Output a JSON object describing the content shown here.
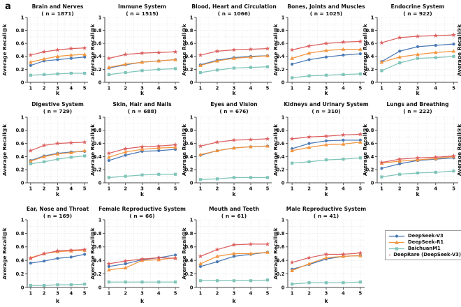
{
  "figure_label": "a",
  "axes": {
    "xlabel": "k",
    "ylabel": "Average Recall@k",
    "xticks": [
      1,
      2,
      3,
      4,
      5
    ],
    "yticks": [
      0,
      0.2,
      0.4,
      0.6,
      0.8,
      1
    ],
    "xlim": [
      0.75,
      5.25
    ],
    "ylim": [
      0,
      1
    ],
    "grid": true
  },
  "series_styles": [
    {
      "name": "DeepSeek-V3",
      "color": "#4a79b5",
      "marker": "circle"
    },
    {
      "name": "DeepSeek-R1",
      "color": "#f3953e",
      "marker": "triangle"
    },
    {
      "name": "BaichuanM1",
      "color": "#7fc4b9",
      "marker": "square"
    },
    {
      "name": "DeepRare (DeepSeek-V3)",
      "color": "#dc5f5f",
      "marker": "star"
    }
  ],
  "chart_data": {
    "type": "line",
    "x": [
      1,
      2,
      3,
      4,
      5
    ],
    "xlabel": "k",
    "ylabel": "Average Recall@k",
    "ylim": [
      0,
      1
    ],
    "legend_position": "grid-cell-row3-col5",
    "legend": [
      "DeepSeek-V3",
      "DeepSeek-R1",
      "BaichuanM1",
      "DeepRare (DeepSeek-V3)"
    ],
    "subplots": [
      {
        "title": "Brain and Nerves",
        "n": 1871,
        "series": [
          [
            0.26,
            0.33,
            0.35,
            0.37,
            0.39
          ],
          [
            0.31,
            0.36,
            0.4,
            0.42,
            0.43
          ],
          [
            0.11,
            0.12,
            0.13,
            0.14,
            0.14
          ],
          [
            0.42,
            0.47,
            0.5,
            0.52,
            0.53
          ]
        ]
      },
      {
        "title": "Immune System",
        "n": 1515,
        "series": [
          [
            0.22,
            0.27,
            0.31,
            0.33,
            0.35
          ],
          [
            0.23,
            0.28,
            0.31,
            0.33,
            0.35
          ],
          [
            0.12,
            0.15,
            0.18,
            0.2,
            0.21
          ],
          [
            0.37,
            0.43,
            0.45,
            0.46,
            0.47
          ]
        ]
      },
      {
        "title": "Blood, Heart and Circulation",
        "n": 1066,
        "series": [
          [
            0.27,
            0.34,
            0.38,
            0.4,
            0.41
          ],
          [
            0.26,
            0.33,
            0.37,
            0.39,
            0.41
          ],
          [
            0.15,
            0.19,
            0.22,
            0.23,
            0.24
          ],
          [
            0.42,
            0.48,
            0.5,
            0.51,
            0.52
          ]
        ]
      },
      {
        "title": "Bones, Joints and Muscles",
        "n": 1025,
        "series": [
          [
            0.28,
            0.35,
            0.39,
            0.42,
            0.44
          ],
          [
            0.37,
            0.45,
            0.49,
            0.51,
            0.51
          ],
          [
            0.07,
            0.1,
            0.11,
            0.12,
            0.13
          ],
          [
            0.5,
            0.56,
            0.6,
            0.62,
            0.63
          ]
        ]
      },
      {
        "title": "Endocrine System",
        "n": 922,
        "series": [
          [
            0.32,
            0.48,
            0.55,
            0.57,
            0.59
          ],
          [
            0.31,
            0.39,
            0.43,
            0.46,
            0.48
          ],
          [
            0.18,
            0.3,
            0.37,
            0.38,
            0.4
          ],
          [
            0.61,
            0.69,
            0.71,
            0.72,
            0.73
          ]
        ]
      },
      {
        "title": "Digestive System",
        "n": 729,
        "series": [
          [
            0.34,
            0.41,
            0.45,
            0.47,
            0.48
          ],
          [
            0.33,
            0.4,
            0.44,
            0.46,
            0.49
          ],
          [
            0.29,
            0.32,
            0.36,
            0.39,
            0.41
          ],
          [
            0.49,
            0.57,
            0.6,
            0.61,
            0.62
          ]
        ]
      },
      {
        "title": "Skin, Hair and Nails",
        "n": 688,
        "series": [
          [
            0.34,
            0.42,
            0.48,
            0.49,
            0.51
          ],
          [
            0.39,
            0.47,
            0.51,
            0.53,
            0.54
          ],
          [
            0.08,
            0.1,
            0.12,
            0.13,
            0.13
          ],
          [
            0.45,
            0.52,
            0.55,
            0.56,
            0.58
          ]
        ]
      },
      {
        "title": "Eyes and Vision",
        "n": 676,
        "series": [
          [
            0.42,
            0.49,
            0.53,
            0.55,
            0.56
          ],
          [
            0.43,
            0.49,
            0.53,
            0.55,
            0.56
          ],
          [
            0.05,
            0.06,
            0.08,
            0.08,
            0.08
          ],
          [
            0.56,
            0.62,
            0.65,
            0.66,
            0.67
          ]
        ]
      },
      {
        "title": "Kidneys and Urinary System",
        "n": 310,
        "series": [
          [
            0.52,
            0.6,
            0.64,
            0.65,
            0.65
          ],
          [
            0.49,
            0.54,
            0.58,
            0.59,
            0.62
          ],
          [
            0.3,
            0.32,
            0.35,
            0.36,
            0.38
          ],
          [
            0.67,
            0.7,
            0.71,
            0.73,
            0.74
          ]
        ]
      },
      {
        "title": "Lungs and Breathing",
        "n": 222,
        "series": [
          [
            0.22,
            0.29,
            0.34,
            0.36,
            0.38
          ],
          [
            0.3,
            0.33,
            0.35,
            0.37,
            0.4
          ],
          [
            0.09,
            0.13,
            0.15,
            0.16,
            0.18
          ],
          [
            0.31,
            0.36,
            0.38,
            0.39,
            0.41
          ]
        ]
      },
      {
        "title": "Ear, Nose and Throat",
        "n": 169,
        "series": [
          [
            0.36,
            0.39,
            0.43,
            0.45,
            0.49
          ],
          [
            0.44,
            0.5,
            0.53,
            0.54,
            0.55
          ],
          [
            0.03,
            0.03,
            0.04,
            0.04,
            0.05
          ],
          [
            0.43,
            0.5,
            0.54,
            0.55,
            0.56
          ]
        ]
      },
      {
        "title": "Female Reproductive System",
        "n": 66,
        "series": [
          [
            0.31,
            0.35,
            0.41,
            0.44,
            0.48
          ],
          [
            0.26,
            0.29,
            0.4,
            0.41,
            0.44
          ],
          [
            0.08,
            0.08,
            0.08,
            0.08,
            0.08
          ],
          [
            0.35,
            0.39,
            0.42,
            0.44,
            0.43
          ]
        ]
      },
      {
        "title": "Mouth and Teeth",
        "n": 61,
        "series": [
          [
            0.31,
            0.38,
            0.46,
            0.49,
            0.52
          ],
          [
            0.35,
            0.46,
            0.5,
            0.5,
            0.52
          ],
          [
            0.1,
            0.1,
            0.1,
            0.1,
            0.11
          ],
          [
            0.46,
            0.56,
            0.63,
            0.64,
            0.64
          ]
        ]
      },
      {
        "title": "Male Reproductive System",
        "n": 41,
        "series": [
          [
            0.27,
            0.34,
            0.42,
            0.46,
            0.47
          ],
          [
            0.25,
            0.35,
            0.44,
            0.46,
            0.47
          ],
          [
            0.05,
            0.07,
            0.07,
            0.07,
            0.08
          ],
          [
            0.37,
            0.44,
            0.49,
            0.49,
            0.51
          ]
        ]
      }
    ]
  },
  "style_colors": {
    "text": "#111111",
    "axis": "#444444",
    "grid": "#dbdbdb",
    "legend_border": "#9a9a9a"
  }
}
